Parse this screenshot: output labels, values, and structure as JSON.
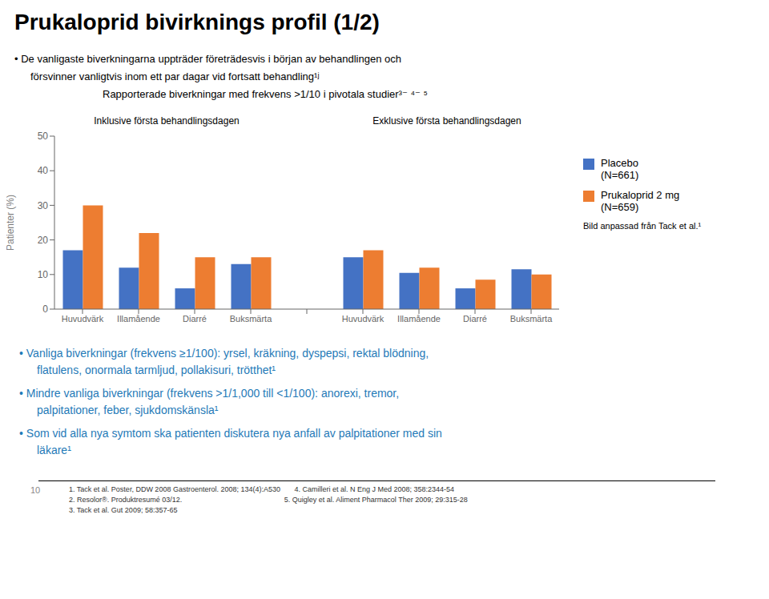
{
  "chart_data": {
    "type": "bar",
    "title": "Prukaloprid bivirknings profil (1/2)",
    "subtitle": [
      "• De vanligaste biverkningarna uppträder företrädesvis i början av behandlingen och",
      "försvinner vanligtvis inom ett par dagar vid fortsatt behandling¹ʲ",
      "Rapporterade biverkningar med frekvens >1/10 i pivotala studier³⁻ ⁴⁻ ⁵"
    ],
    "ylabel": "Patienter (%)",
    "categories": [
      "Huvudvärk",
      "Illamående",
      "Diarré",
      "Buksmärta",
      "Huvudvärk",
      "Illamående",
      "Diarré",
      "Buksmärta"
    ],
    "group_labels": [
      "Inklusive första behandlingsdagen",
      "Exklusive första behandlingsdagen"
    ],
    "series": [
      {
        "name": "Placebo\n(N=661)",
        "color": "#4472C4",
        "values": [
          17,
          12,
          6,
          13,
          15,
          10.5,
          6,
          11.5
        ]
      },
      {
        "name": "Prukaloprid 2 mg\n(N=659)",
        "color": "#ED7D31",
        "values": [
          30,
          22,
          15,
          15,
          17,
          12,
          8.5,
          10
        ]
      }
    ],
    "ylim": [
      0,
      50
    ],
    "yticks": [
      0,
      10,
      20,
      30,
      40,
      50
    ],
    "grid": false,
    "legend": "right",
    "source_note": "Bild anpassad från Tack et al.¹",
    "bullet_points": [
      [
        "• Vanliga biverkningar (frekvens ≥1/100): yrsel, kräkning, dyspepsi, rektal blödning,",
        "flatulens, onormala tarmljud, pollakisuri, trötthet¹"
      ],
      [
        "• Mindre vanliga biverkningar (frekvens >1/1,000 till <1/100): anorexi, tremor,",
        "palpitationer, feber, sjukdomskänsla¹"
      ],
      [
        "• Som vid alla nya symtom ska patienten diskutera nya anfall av palpitationer med sin",
        "läkare¹"
      ]
    ],
    "bullet_color": "#1F7AB8",
    "footnotes": [
      "1. Tack et al. Poster, DDW 2008 Gastroenterol. 2008; 134(4):A530       4. Camilleri et al. N Eng J Med 2008; 358:2344-54",
      "2. Resolor®. Produktresumé 03/12.                                                   5. Quigley et al. Aliment Pharmacol Ther 2009; 29:315-28",
      "3. Tack et al. Gut 2009; 58:357-65"
    ],
    "page_number": "10"
  }
}
